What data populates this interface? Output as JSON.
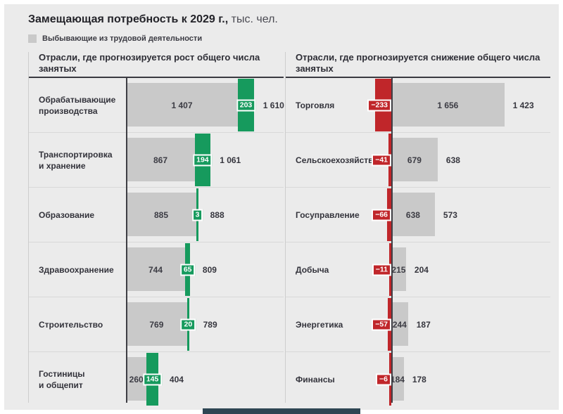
{
  "title": {
    "text": "Замещающая потребность к 2029 г.,",
    "unit": "тыс. чел."
  },
  "legend": {
    "label": "Выбывающие из трудовой деятельности"
  },
  "colors": {
    "background": "#ebebeb",
    "bar_gray": "#c9c9c9",
    "growth_green": "#169a5d",
    "decline_red": "#c0262a",
    "axis": "#3e3e44",
    "text_dark": "#33333b"
  },
  "chart_data": [
    {
      "type": "bar",
      "orientation": "horizontal",
      "panel": "growth",
      "title": "Отрасли, где прогнозируется рост общего числа занятых",
      "legend_note": "серый сегмент = выбывающие из трудовой деятельности, зелёный сегмент = прирост занятых, итог = замещающая потребность",
      "rows": [
        {
          "label": "Обрабатывающие\nпроизводства",
          "base": 1407,
          "delta": 203,
          "total": 1610,
          "base_label": "1 407",
          "delta_label": "203",
          "total_label": "1 610"
        },
        {
          "label": "Транспортировка\nи хранение",
          "base": 867,
          "delta": 194,
          "total": 1061,
          "base_label": "867",
          "delta_label": "194",
          "total_label": "1 061"
        },
        {
          "label": "Образование",
          "base": 885,
          "delta": 3,
          "total": 888,
          "base_label": "885",
          "delta_label": "3",
          "total_label": "888"
        },
        {
          "label": "Здравоохранение",
          "base": 744,
          "delta": 65,
          "total": 809,
          "base_label": "744",
          "delta_label": "65",
          "total_label": "809"
        },
        {
          "label": "Строительство",
          "base": 769,
          "delta": 20,
          "total": 789,
          "base_label": "769",
          "delta_label": "20",
          "total_label": "789"
        },
        {
          "label": "Гостиницы\nи общепит",
          "base": 260,
          "delta": 145,
          "total": 404,
          "base_label": "260",
          "delta_label": "145",
          "total_label": "404"
        }
      ]
    },
    {
      "type": "bar",
      "orientation": "horizontal",
      "panel": "decline",
      "title": "Отрасли, где прогнозируется снижение общего числа занятых",
      "legend_note": "красный сегмент = снижение занятых, серый сегмент = выбывающие из трудовой деятельности, итог = замещающая потребность",
      "rows": [
        {
          "label": "Торговля",
          "base": 1656,
          "delta": -233,
          "total": 1423,
          "base_label": "1 656",
          "delta_label": "−233",
          "total_label": "1 423"
        },
        {
          "label": "Сельскоехозяйство",
          "base": 679,
          "delta": -41,
          "total": 638,
          "base_label": "679",
          "delta_label": "−41",
          "total_label": "638"
        },
        {
          "label": "Госуправление",
          "base": 638,
          "delta": -66,
          "total": 573,
          "base_label": "638",
          "delta_label": "−66",
          "total_label": "573"
        },
        {
          "label": "Добыча",
          "base": 215,
          "delta": -11,
          "total": 204,
          "base_label": "215",
          "delta_label": "−11",
          "total_label": "204"
        },
        {
          "label": "Энергетика",
          "base": 244,
          "delta": -57,
          "total": 187,
          "base_label": "244",
          "delta_label": "−57",
          "total_label": "187"
        },
        {
          "label": "Финансы",
          "base": 184,
          "delta": -6,
          "total": 178,
          "base_label": "184",
          "delta_label": "−6",
          "total_label": "178"
        }
      ]
    }
  ]
}
